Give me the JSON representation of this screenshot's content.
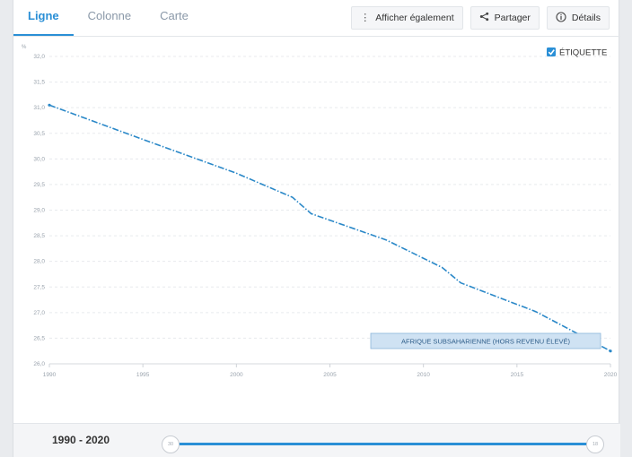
{
  "tabs": [
    {
      "label": "Ligne",
      "active": true
    },
    {
      "label": "Colonne",
      "active": false
    },
    {
      "label": "Carte",
      "active": false
    }
  ],
  "toolbar": {
    "show_also": {
      "label": "Afficher également",
      "icon": "more-vertical-icon"
    },
    "share": {
      "label": "Partager",
      "icon": "share-icon"
    },
    "details": {
      "label": "Détails",
      "icon": "info-icon"
    }
  },
  "label_toggle": {
    "label": "ÉTIQUETTE",
    "checked": true
  },
  "colors": {
    "accent": "#2a8fd6",
    "line": "#2a88c8",
    "series_label_bg": "#cfe2f3"
  },
  "chart_data": {
    "type": "line",
    "yunit": "%",
    "ylim": [
      26.0,
      32.0
    ],
    "yticks": [
      "32,0",
      "31,5",
      "31,0",
      "30,5",
      "30,0",
      "29,5",
      "29,0",
      "28,5",
      "28,0",
      "27,5",
      "27,0",
      "26,5",
      "26,0"
    ],
    "xlim": [
      1990,
      2020
    ],
    "xticks": [
      "1990",
      "1995",
      "2000",
      "2005",
      "2010",
      "2015",
      "2020"
    ],
    "grid": true,
    "series": [
      {
        "name": "AFRIQUE SUBSAHARIENNE (HORS REVENU ÉLEVÉ)",
        "x": [
          1990,
          1995,
          2000,
          2003,
          2004,
          2008,
          2011,
          2012,
          2016,
          2020
        ],
        "y": [
          31.05,
          30.38,
          29.72,
          29.25,
          28.93,
          28.42,
          27.88,
          27.58,
          27.02,
          26.25
        ]
      }
    ]
  },
  "range": {
    "label": "1990 - 2020",
    "start_handle": "30",
    "end_handle": "18"
  }
}
